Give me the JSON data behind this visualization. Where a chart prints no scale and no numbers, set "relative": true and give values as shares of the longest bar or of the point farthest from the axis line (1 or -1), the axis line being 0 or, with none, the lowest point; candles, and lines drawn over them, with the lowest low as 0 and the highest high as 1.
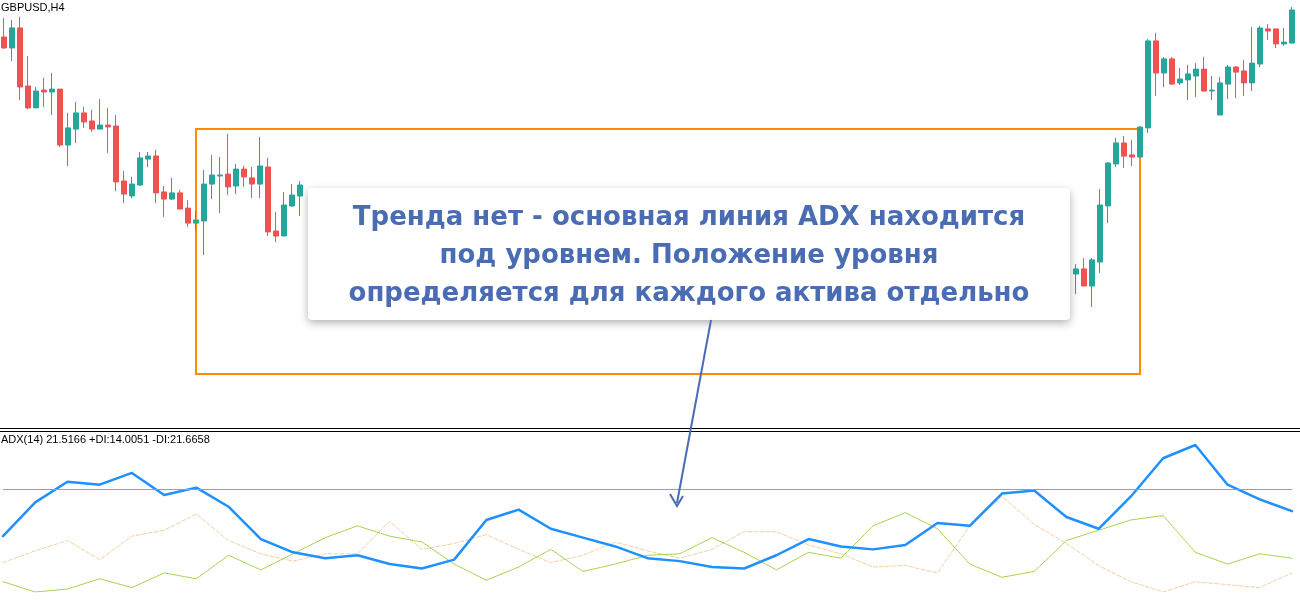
{
  "chart_data": [
    {
      "type": "candlestick",
      "title": "GBPUSD,H4",
      "relative": true,
      "annotations": [
        "Тренда нет - основная линия ADX находится под уровнем. Положение уровня определяется для каждого актива отдельно"
      ],
      "categories": [
        null,
        null,
        null,
        null,
        null,
        null,
        null,
        null,
        null,
        null,
        null,
        null,
        null,
        null,
        null,
        null,
        null,
        null,
        null,
        null,
        null,
        null,
        null,
        null,
        null,
        null,
        null,
        null,
        null,
        null,
        null,
        null,
        null,
        null,
        null,
        null,
        null,
        null
      ],
      "ohlc": [
        [
          0.916,
          0.996,
          0.866,
          0.87
        ],
        [
          0.87,
          0.987,
          0.815,
          0.954
        ],
        [
          0.954,
          1,
          0.651,
          0.706
        ],
        [
          0.71,
          0.836,
          0.613,
          0.618
        ],
        [
          0.618,
          0.706,
          0.618,
          0.689
        ],
        [
          0.693,
          0.744,
          0.622,
          0.685
        ],
        [
          0.685,
          0.765,
          0.588,
          0.697
        ],
        [
          0.697,
          0.697,
          0.454,
          0.462
        ],
        [
          0.462,
          0.597,
          0.374,
          0.534
        ],
        [
          0.529,
          0.643,
          0.471,
          0.597
        ],
        [
          0.597,
          0.622,
          0.534,
          0.559
        ],
        [
          0.563,
          0.609,
          0.517,
          0.529
        ],
        [
          0.529,
          0.655,
          0.529,
          0.546
        ],
        [
          0.546,
          0.618,
          0.429,
          0.538
        ],
        [
          0.542,
          0.588,
          0.269,
          0.307
        ],
        [
          0.311,
          0.353,
          0.218,
          0.256
        ],
        [
          0.248,
          0.328,
          0.239,
          0.298
        ],
        [
          0.294,
          0.433,
          0.29,
          0.408
        ],
        [
          0.403,
          0.433,
          0.37,
          0.416
        ],
        [
          0.416,
          0.441,
          0.218,
          0.261
        ],
        [
          0.265,
          0.29,
          0.16,
          0.235
        ],
        [
          0.235,
          0.324,
          0.231,
          0.261
        ],
        [
          0.261,
          0.273,
          0.193,
          0.193
        ],
        [
          0.197,
          0.231,
          0.118,
          0.134
        ],
        [
          0.134,
          0.185,
          0.105,
          0.147
        ],
        [
          0.143,
          0.357,
          0,
          0.298
        ],
        [
          0.298,
          0.42,
          0.235,
          0.336
        ],
        [
          0.332,
          0.412,
          0.176,
          0.336
        ],
        [
          0.34,
          0.508,
          0.252,
          0.286
        ],
        [
          0.29,
          0.382,
          0.256,
          0.361
        ],
        [
          0.361,
          0.374,
          0.286,
          0.328
        ],
        [
          0.324,
          0.37,
          0.239,
          0.298
        ],
        [
          0.298,
          0.496,
          0.239,
          0.374
        ],
        [
          0.37,
          0.408,
          0.08,
          0.097
        ],
        [
          0.101,
          0.181,
          0.055,
          0.08
        ],
        [
          0.08,
          0.265,
          0.08,
          0.21
        ],
        [
          0.206,
          0.298,
          0.202,
          0.252
        ],
        [
          0.248,
          0.311,
          0.164,
          0.294
        ]
      ]
    },
    {
      "type": "candlestick",
      "relative": true,
      "categories": [
        null,
        null,
        null,
        null,
        null,
        null,
        null,
        null,
        null,
        null,
        null,
        null,
        null,
        null,
        null,
        null,
        null,
        null,
        null,
        null,
        null,
        null,
        null,
        null,
        null,
        null,
        null,
        null
      ],
      "ohlc": [
        [
          0.11,
          0.143,
          0.043,
          0.127
        ],
        [
          0.127,
          0.163,
          0.07,
          0.07
        ],
        [
          0.07,
          0.163,
          0.0,
          0.157
        ],
        [
          0.15,
          0.393,
          0.113,
          0.34
        ],
        [
          0.337,
          0.483,
          0.28,
          0.48
        ],
        [
          0.477,
          0.563,
          0.467,
          0.547
        ],
        [
          0.547,
          0.57,
          0.463,
          0.503
        ],
        [
          0.507,
          0.557,
          0.47,
          0.5
        ],
        [
          0.5,
          0.603,
          0.5,
          0.6
        ],
        [
          0.597,
          0.893,
          0.58,
          0.887
        ],
        [
          0.887,
          0.913,
          0.703,
          0.78
        ],
        [
          0.78,
          0.833,
          0.733,
          0.827
        ],
        [
          0.827,
          0.833,
          0.74,
          0.743
        ],
        [
          0.747,
          0.797,
          0.74,
          0.76
        ],
        [
          0.757,
          0.807,
          0.69,
          0.777
        ],
        [
          0.77,
          0.813,
          0.7,
          0.793
        ],
        [
          0.793,
          0.833,
          0.717,
          0.72
        ],
        [
          0.72,
          0.77,
          0.69,
          0.723
        ],
        [
          0.64,
          0.767,
          0.64,
          0.747
        ],
        [
          0.743,
          0.807,
          0.693,
          0.8
        ],
        [
          0.8,
          0.803,
          0.697,
          0.783
        ],
        [
          0.787,
          0.823,
          0.703,
          0.747
        ],
        [
          0.747,
          0.933,
          0.72,
          0.813
        ],
        [
          0.81,
          0.937,
          0.8,
          0.93
        ],
        [
          0.927,
          0.943,
          0.89,
          0.92
        ],
        [
          0.927,
          0.927,
          0.863,
          0.877
        ],
        [
          0.877,
          0.93,
          0.87,
          0.883
        ],
        [
          0.88,
          1.0,
          0.877,
          0.99
        ]
      ]
    },
    {
      "type": "line",
      "title": "ADX(14) 21.5166 +DI:14.0051 -DI:21.6658",
      "relative": true,
      "marker": "none",
      "categories": [
        null,
        null,
        null,
        null,
        null,
        null,
        null,
        null,
        null,
        null,
        null,
        null,
        null,
        null,
        null,
        null,
        null,
        null,
        null,
        null,
        null,
        null,
        null,
        null,
        null,
        null,
        null,
        null,
        null,
        null,
        null,
        null,
        null,
        null,
        null,
        null,
        null,
        null,
        null,
        null,
        null
      ],
      "series": [
        {
          "color": "#f5cfa0",
          "line_style": "dashed",
          "values": [
            0.2,
            0.28,
            0.35,
            0.22,
            0.38,
            0.42,
            0.53,
            0.35,
            0.26,
            0.21,
            0.26,
            0.26,
            0.48,
            0.29,
            0.33,
            0.39,
            0.29,
            0.2,
            0.25,
            0.34,
            0.28,
            0.23,
            0.29,
            0.41,
            0.41,
            0.32,
            0.26,
            0.17,
            0.18,
            0.13,
            0.45,
            0.65,
            0.46,
            0.33,
            0.18,
            0.07,
            0,
            0.07,
            0.05,
            0.03,
            0.13
          ]
        },
        {
          "color": "#9acd32",
          "line_style": "dotted",
          "values": [
            0.07,
            0,
            0.02,
            0.09,
            0.03,
            0.13,
            0.09,
            0.25,
            0.15,
            0.26,
            0.37,
            0.45,
            0.38,
            0.34,
            0.19,
            0.08,
            0.17,
            0.29,
            0.14,
            0.19,
            0.25,
            0.26,
            0.37,
            0.27,
            0.15,
            0.27,
            0.23,
            0.45,
            0.54,
            0.43,
            0.19,
            0.1,
            0.14,
            0.35,
            0.42,
            0.49,
            0.52,
            0.27,
            0.19,
            0.26,
            0.23
          ]
        },
        {
          "color": "#1e90ff",
          "line_style": "solid",
          "values": [
            0.38,
            0.61,
            0.75,
            0.73,
            0.81,
            0.66,
            0.71,
            0.58,
            0.36,
            0.27,
            0.23,
            0.25,
            0.19,
            0.16,
            0.22,
            0.49,
            0.56,
            0.43,
            0.37,
            0.31,
            0.23,
            0.21,
            0.17,
            0.16,
            0.25,
            0.36,
            0.31,
            0.29,
            0.32,
            0.47,
            0.45,
            0.67,
            0.69,
            0.51,
            0.43,
            0.65,
            0.91,
            1,
            0.73,
            0.63,
            0.55
          ]
        }
      ],
      "ref_lines": [
        {
          "axis": "y",
          "value": 0.7,
          "color": "#ff8c00"
        }
      ]
    }
  ]
}
